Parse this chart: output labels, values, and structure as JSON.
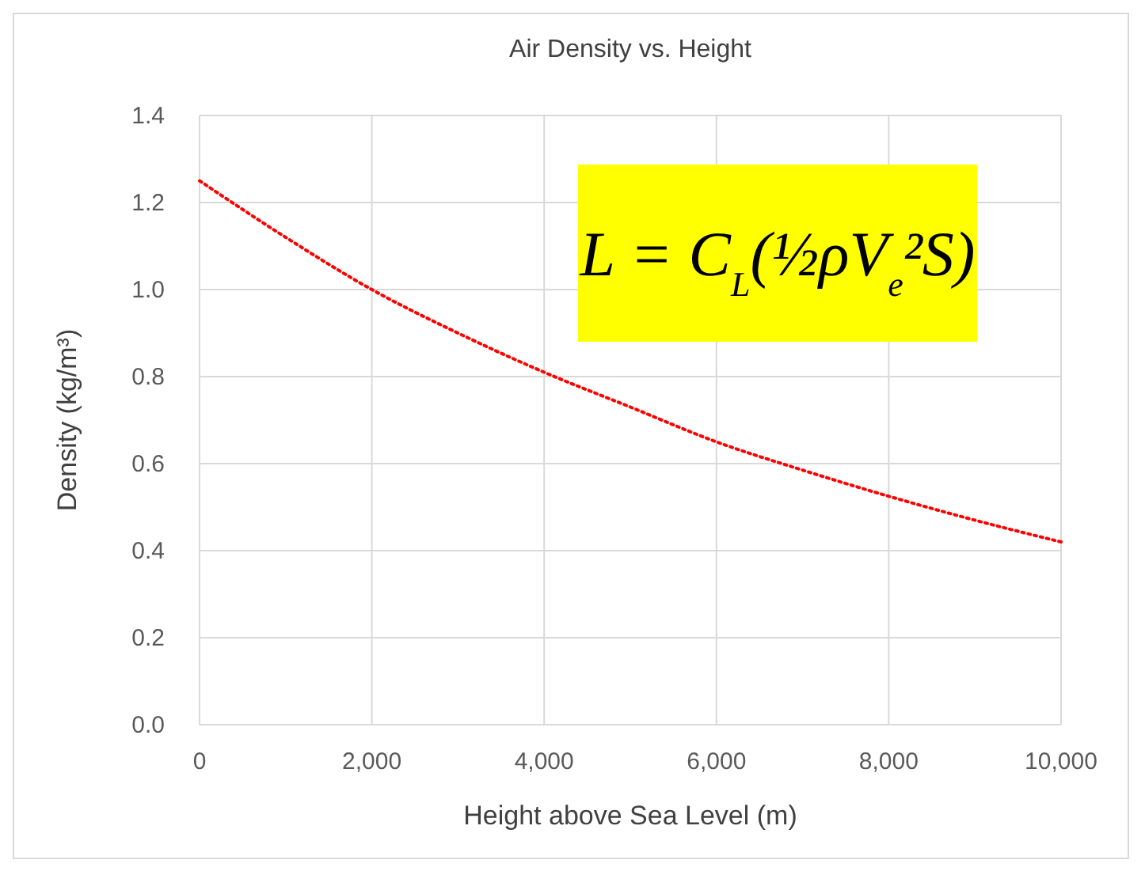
{
  "chart_data": {
    "type": "line",
    "title": "Air Density vs. Height",
    "xlabel": "Height above Sea Level (m)",
    "ylabel": "Density (kg/m³)",
    "x": [
      0,
      1000,
      2000,
      3000,
      4000,
      5000,
      6000,
      7000,
      8000,
      9000,
      10000
    ],
    "series": [
      {
        "color": "#ff0000",
        "values": [
          1.25,
          1.12,
          1.0,
          0.9,
          0.81,
          0.73,
          0.65,
          0.585,
          0.525,
          0.47,
          0.42
        ]
      }
    ],
    "xlim": [
      0,
      10000
    ],
    "ylim": [
      0,
      1.4
    ],
    "xticks": [
      0,
      {
        "value": 2000,
        "label": "2,000"
      },
      {
        "value": 4000,
        "label": "4,000"
      },
      {
        "value": 6000,
        "label": "6,000"
      },
      {
        "value": 8000,
        "label": "8,000"
      },
      {
        "value": 10000,
        "label": "10,000"
      }
    ],
    "yticks": [
      {
        "value": 0,
        "label": "0.0"
      },
      {
        "value": 0.2,
        "label": "0.2"
      },
      {
        "value": 0.4,
        "label": "0.4"
      },
      {
        "value": 0.6,
        "label": "0.6"
      },
      {
        "value": 0.8,
        "label": "0.8"
      },
      {
        "value": 1,
        "label": "1.0"
      },
      {
        "value": 1.2,
        "label": "1.2"
      },
      {
        "value": 1.4,
        "label": "1.4"
      }
    ],
    "grid": true,
    "marker": "none",
    "line_style": "dotted",
    "annotations": [
      "L = C$_{L}$(½ρV$_{e}$²S)"
    ]
  }
}
